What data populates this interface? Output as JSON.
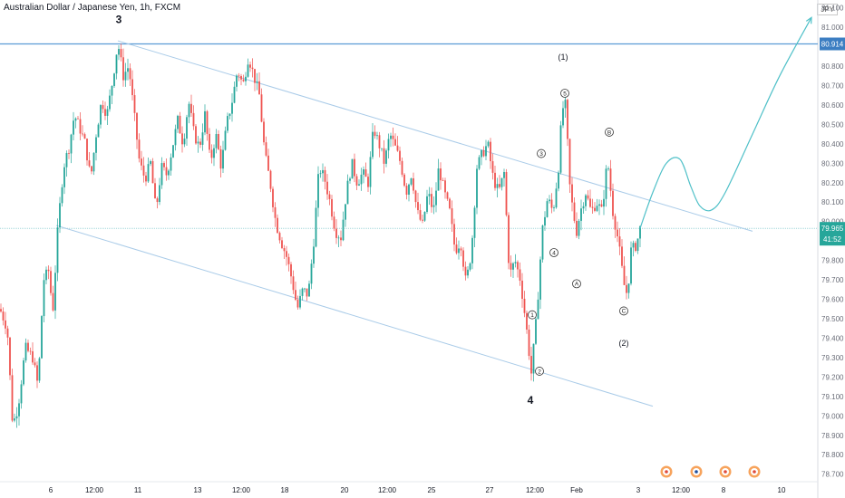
{
  "header": {
    "title": "Australian Dollar / Japanese Yen, 1h, FXCM",
    "currency": "JPY"
  },
  "colors": {
    "up": "#26a69a",
    "down": "#ef5350",
    "channel": "#a9cbe8",
    "resistance": "#5b9bd5",
    "projection": "#4fc0c8",
    "current_line": "#9fd6d9",
    "price_tag": "#26a69a",
    "resistance_tag": "#3c7ec2",
    "axis_text": "#6a6d78"
  },
  "price_tags": {
    "resistance": "80.914",
    "current": "79.965",
    "countdown": "41:52"
  },
  "chart_data": {
    "type": "candlestick",
    "ylim": [
      78.68,
      81.14
    ],
    "y_ticks": [
      "81.100",
      "81.000",
      "80.900",
      "80.800",
      "80.700",
      "80.600",
      "80.500",
      "80.400",
      "80.300",
      "80.200",
      "80.100",
      "80.000",
      "79.900",
      "79.800",
      "79.700",
      "79.600",
      "79.500",
      "79.400",
      "79.300",
      "79.200",
      "79.100",
      "79.000",
      "78.900",
      "78.800",
      "78.700"
    ],
    "x_ticks": [
      "6",
      "12:00",
      "11",
      "13",
      "12:00",
      "18",
      "20",
      "12:00",
      "25",
      "27",
      "12:00",
      "Feb",
      "3",
      "12:00",
      "8",
      "10"
    ],
    "resistance_level": 80.914,
    "current_price": 79.965,
    "channel": {
      "upper": [
        [
          130,
          80.93
        ],
        [
          830,
          79.95
        ]
      ],
      "lower": [
        [
          62,
          79.98
        ],
        [
          720,
          79.05
        ]
      ]
    },
    "price_path": [
      [
        0,
        79.55
      ],
      [
        8,
        79.45
      ],
      [
        14,
        78.95
      ],
      [
        20,
        79.05
      ],
      [
        28,
        79.35
      ],
      [
        36,
        79.3
      ],
      [
        42,
        79.15
      ],
      [
        48,
        79.7
      ],
      [
        54,
        79.75
      ],
      [
        58,
        79.52
      ],
      [
        64,
        79.98
      ],
      [
        70,
        80.28
      ],
      [
        76,
        80.38
      ],
      [
        82,
        80.55
      ],
      [
        88,
        80.48
      ],
      [
        94,
        80.4
      ],
      [
        100,
        80.22
      ],
      [
        106,
        80.45
      ],
      [
        112,
        80.62
      ],
      [
        118,
        80.55
      ],
      [
        124,
        80.72
      ],
      [
        130,
        80.92
      ],
      [
        136,
        80.75
      ],
      [
        142,
        80.8
      ],
      [
        148,
        80.55
      ],
      [
        154,
        80.3
      ],
      [
        160,
        80.22
      ],
      [
        166,
        80.3
      ],
      [
        172,
        80.05
      ],
      [
        178,
        80.28
      ],
      [
        184,
        80.24
      ],
      [
        190,
        80.38
      ],
      [
        196,
        80.52
      ],
      [
        202,
        80.4
      ],
      [
        208,
        80.62
      ],
      [
        214,
        80.45
      ],
      [
        220,
        80.38
      ],
      [
        226,
        80.55
      ],
      [
        232,
        80.3
      ],
      [
        238,
        80.45
      ],
      [
        244,
        80.28
      ],
      [
        250,
        80.5
      ],
      [
        256,
        80.62
      ],
      [
        262,
        80.78
      ],
      [
        268,
        80.7
      ],
      [
        274,
        80.85
      ],
      [
        280,
        80.75
      ],
      [
        286,
        80.65
      ],
      [
        292,
        80.35
      ],
      [
        298,
        80.2
      ],
      [
        304,
        80.0
      ],
      [
        310,
        79.9
      ],
      [
        316,
        79.82
      ],
      [
        322,
        79.7
      ],
      [
        328,
        79.55
      ],
      [
        334,
        79.65
      ],
      [
        340,
        79.62
      ],
      [
        346,
        79.9
      ],
      [
        352,
        80.28
      ],
      [
        358,
        80.22
      ],
      [
        364,
        80.1
      ],
      [
        370,
        79.95
      ],
      [
        376,
        79.92
      ],
      [
        382,
        80.15
      ],
      [
        388,
        80.3
      ],
      [
        394,
        80.2
      ],
      [
        400,
        80.25
      ],
      [
        406,
        80.2
      ],
      [
        412,
        80.48
      ],
      [
        418,
        80.4
      ],
      [
        424,
        80.3
      ],
      [
        430,
        80.45
      ],
      [
        436,
        80.38
      ],
      [
        442,
        80.3
      ],
      [
        448,
        80.15
      ],
      [
        454,
        80.25
      ],
      [
        460,
        80.05
      ],
      [
        466,
        79.98
      ],
      [
        472,
        80.15
      ],
      [
        478,
        80.05
      ],
      [
        484,
        80.28
      ],
      [
        490,
        80.15
      ],
      [
        496,
        80.05
      ],
      [
        502,
        79.85
      ],
      [
        508,
        79.9
      ],
      [
        514,
        79.68
      ],
      [
        520,
        79.85
      ],
      [
        526,
        80.28
      ],
      [
        532,
        80.35
      ],
      [
        538,
        80.4
      ],
      [
        544,
        80.22
      ],
      [
        550,
        80.15
      ],
      [
        556,
        80.25
      ],
      [
        562,
        79.72
      ],
      [
        568,
        79.8
      ],
      [
        574,
        79.7
      ],
      [
        580,
        79.48
      ],
      [
        586,
        79.22
      ],
      [
        592,
        79.52
      ],
      [
        598,
        79.95
      ],
      [
        604,
        80.12
      ],
      [
        610,
        80.05
      ],
      [
        616,
        80.28
      ],
      [
        620,
        80.58
      ],
      [
        624,
        80.6
      ],
      [
        628,
        80.2
      ],
      [
        632,
        80.05
      ],
      [
        636,
        79.95
      ],
      [
        640,
        80.05
      ],
      [
        646,
        80.15
      ],
      [
        652,
        80.05
      ],
      [
        658,
        80.1
      ],
      [
        664,
        80.05
      ],
      [
        670,
        80.32
      ],
      [
        676,
        80.05
      ],
      [
        682,
        79.9
      ],
      [
        688,
        79.68
      ],
      [
        692,
        79.62
      ],
      [
        696,
        79.85
      ],
      [
        702,
        79.88
      ],
      [
        706,
        79.965
      ]
    ],
    "projection": [
      [
        706,
        79.965
      ],
      [
        720,
        80.15
      ],
      [
        735,
        80.3
      ],
      [
        750,
        80.32
      ],
      [
        762,
        80.18
      ],
      [
        772,
        80.08
      ],
      [
        785,
        80.06
      ],
      [
        800,
        80.15
      ],
      [
        830,
        80.45
      ],
      [
        860,
        80.75
      ],
      [
        895,
        81.05
      ]
    ],
    "annotations": [
      {
        "label": "3",
        "x": 131,
        "y": 81.04,
        "circled": false,
        "large": true
      },
      {
        "label": "4",
        "x": 585,
        "y": 79.08,
        "circled": false,
        "large": true
      },
      {
        "label": "(1)",
        "x": 621,
        "y": 80.85,
        "circled": false
      },
      {
        "label": "(2)",
        "x": 688,
        "y": 79.38,
        "circled": false
      },
      {
        "label": "5",
        "x": 623,
        "y": 80.66,
        "circled": true
      },
      {
        "label": "3",
        "x": 597,
        "y": 80.35,
        "circled": true
      },
      {
        "label": "4",
        "x": 611,
        "y": 79.84,
        "circled": true
      },
      {
        "label": "1",
        "x": 587,
        "y": 79.52,
        "circled": true
      },
      {
        "label": "2",
        "x": 595,
        "y": 79.23,
        "circled": true
      },
      {
        "label": "A",
        "x": 636,
        "y": 79.68,
        "circled": true
      },
      {
        "label": "B",
        "x": 672,
        "y": 80.46,
        "circled": true
      },
      {
        "label": "C",
        "x": 688,
        "y": 79.54,
        "circled": true
      }
    ]
  }
}
